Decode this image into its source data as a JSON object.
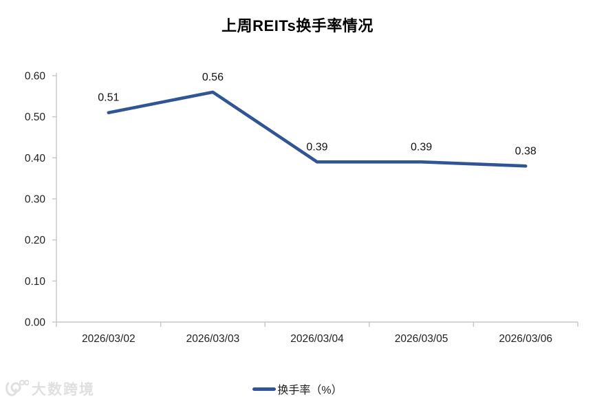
{
  "title": "上周REITs换手率情况",
  "chart_data": {
    "type": "line",
    "categories": [
      "2026/03/02",
      "2026/03/03",
      "2026/03/04",
      "2026/03/05",
      "2026/03/06"
    ],
    "series": [
      {
        "name": "换手率（%）",
        "values": [
          0.51,
          0.56,
          0.39,
          0.39,
          0.38
        ]
      }
    ],
    "data_labels": [
      "0.51",
      "0.56",
      "0.39",
      "0.39",
      "0.38"
    ],
    "y_ticks": [
      "0.00",
      "0.10",
      "0.20",
      "0.30",
      "0.40",
      "0.50",
      "0.60"
    ],
    "ylim": [
      0,
      0.6
    ],
    "xlabel": "",
    "ylabel": "",
    "grid": false,
    "legend_position": "bottom",
    "line_color": "#2F5597",
    "axis_color": "#c6c6c6",
    "text_color": "#1f1f1f"
  },
  "legend": {
    "label": "换手率（%）"
  },
  "watermark": {
    "text": "大数跨境"
  }
}
